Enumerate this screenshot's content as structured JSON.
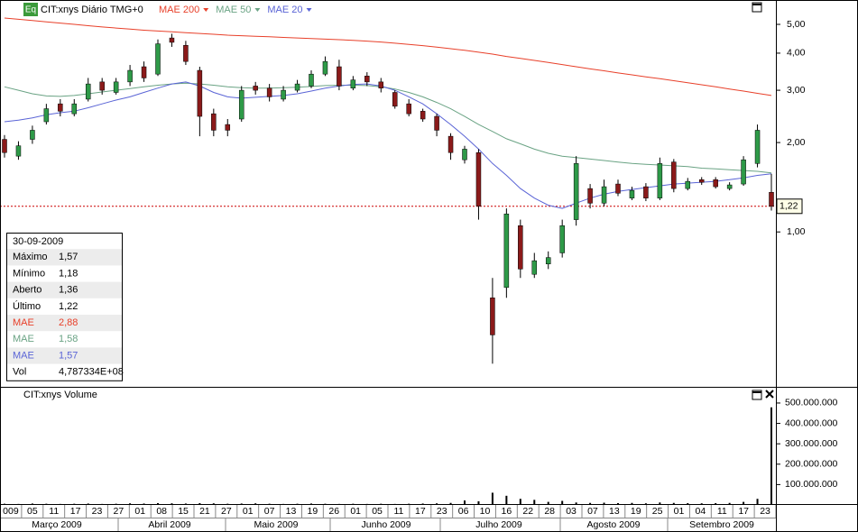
{
  "header": {
    "icon": "Eq",
    "title": "CIT:xnys Diário TMG+0"
  },
  "chart_data": [
    {
      "type": "candlestick",
      "open": [
        2.05,
        1.8,
        2.05,
        2.35,
        2.7,
        2.5,
        2.8,
        3.2,
        2.95,
        3.2,
        3.6,
        3.4,
        4.5,
        4.25,
        3.5,
        2.5,
        2.3,
        2.4,
        3.1,
        3.05,
        2.8,
        3.0,
        3.1,
        3.4,
        3.6,
        3.05,
        3.35,
        3.2,
        2.95,
        2.7,
        2.55,
        2.45,
        2.1,
        1.75,
        1.85,
        0.6,
        0.65,
        1.05,
        0.72,
        0.78,
        0.85,
        1.1,
        1.4,
        1.25,
        1.45,
        1.3,
        1.42,
        1.3,
        1.72,
        1.4,
        1.5,
        1.5,
        1.4,
        1.45,
        1.7,
        1.36
      ],
      "high": [
        2.12,
        2.02,
        2.28,
        2.7,
        2.8,
        2.8,
        3.3,
        3.3,
        3.3,
        3.65,
        3.75,
        4.45,
        4.65,
        4.4,
        3.6,
        2.6,
        2.4,
        3.1,
        3.2,
        3.15,
        3.1,
        3.25,
        3.5,
        3.9,
        3.8,
        3.35,
        3.45,
        3.3,
        3.0,
        2.8,
        2.6,
        2.5,
        2.15,
        1.95,
        1.9,
        0.7,
        1.2,
        1.1,
        0.85,
        0.86,
        1.1,
        1.8,
        1.45,
        1.5,
        1.5,
        1.42,
        1.46,
        1.78,
        1.76,
        1.52,
        1.53,
        1.53,
        1.47,
        1.8,
        2.3,
        1.57
      ],
      "low": [
        1.78,
        1.75,
        1.98,
        2.3,
        2.45,
        2.45,
        2.75,
        2.9,
        2.9,
        3.1,
        3.2,
        3.35,
        4.2,
        3.65,
        2.1,
        2.1,
        2.1,
        2.35,
        2.9,
        2.75,
        2.75,
        2.95,
        3.05,
        3.35,
        3.0,
        3.0,
        3.1,
        2.95,
        2.6,
        2.45,
        2.35,
        2.1,
        1.75,
        1.7,
        1.1,
        0.36,
        0.6,
        0.7,
        0.7,
        0.75,
        0.82,
        1.05,
        1.2,
        1.22,
        1.32,
        1.28,
        1.27,
        1.28,
        1.36,
        1.38,
        1.44,
        1.4,
        1.38,
        1.43,
        1.65,
        1.18
      ],
      "close": [
        1.85,
        1.95,
        2.2,
        2.6,
        2.55,
        2.7,
        3.15,
        3.0,
        3.2,
        3.5,
        3.3,
        4.3,
        4.35,
        3.75,
        2.45,
        2.2,
        2.2,
        3.0,
        3.0,
        2.85,
        3.0,
        3.15,
        3.4,
        3.75,
        3.1,
        3.25,
        3.2,
        3.05,
        2.65,
        2.5,
        2.4,
        2.2,
        1.85,
        1.9,
        1.22,
        0.45,
        1.15,
        0.75,
        0.8,
        0.82,
        1.05,
        1.7,
        1.25,
        1.42,
        1.35,
        1.38,
        1.3,
        1.7,
        1.4,
        1.48,
        1.47,
        1.42,
        1.44,
        1.75,
        2.2,
        1.22
      ],
      "up_color": "#2e9a48",
      "down_color": "#8b1a1a",
      "log_scale": true,
      "ylim": [
        0.303,
        6.04
      ],
      "yticks": [
        {
          "value": 5,
          "label": "5,00"
        },
        {
          "value": 4,
          "label": "4,00"
        },
        {
          "value": 3,
          "label": "3,00"
        },
        {
          "value": 2,
          "label": "2,00"
        },
        {
          "value": 1,
          "label": "1,00"
        }
      ],
      "last_price": {
        "value": 1.22,
        "label": "1,22",
        "color": "#cc0000"
      },
      "series": [
        {
          "name": "MAE 200",
          "color": "#e8402a",
          "values": [
            5.25,
            5.2,
            5.15,
            5.1,
            5.05,
            5.0,
            4.95,
            4.9,
            4.86,
            4.82,
            4.78,
            4.75,
            4.72,
            4.69,
            4.66,
            4.63,
            4.6,
            4.58,
            4.56,
            4.54,
            4.52,
            4.5,
            4.48,
            4.46,
            4.44,
            4.42,
            4.39,
            4.36,
            4.32,
            4.28,
            4.24,
            4.19,
            4.14,
            4.09,
            4.03,
            3.97,
            3.9,
            3.84,
            3.78,
            3.72,
            3.66,
            3.6,
            3.54,
            3.49,
            3.43,
            3.38,
            3.33,
            3.28,
            3.23,
            3.18,
            3.13,
            3.08,
            3.03,
            2.98,
            2.93,
            2.88
          ]
        },
        {
          "name": "MAE 50",
          "color": "#6aa384",
          "values": [
            3.08,
            3.0,
            2.92,
            2.87,
            2.86,
            2.88,
            2.92,
            2.96,
            3.0,
            3.04,
            3.08,
            3.12,
            3.15,
            3.17,
            3.15,
            3.12,
            3.08,
            3.06,
            3.05,
            3.05,
            3.06,
            3.07,
            3.09,
            3.11,
            3.12,
            3.12,
            3.11,
            3.08,
            3.03,
            2.95,
            2.85,
            2.73,
            2.6,
            2.45,
            2.3,
            2.18,
            2.06,
            1.98,
            1.9,
            1.84,
            1.8,
            1.78,
            1.76,
            1.74,
            1.72,
            1.7,
            1.69,
            1.68,
            1.67,
            1.66,
            1.64,
            1.63,
            1.62,
            1.61,
            1.6,
            1.58
          ]
        },
        {
          "name": "MAE 20",
          "color": "#5a64d6",
          "values": [
            2.35,
            2.38,
            2.42,
            2.48,
            2.52,
            2.55,
            2.62,
            2.7,
            2.78,
            2.85,
            2.95,
            3.05,
            3.15,
            3.2,
            3.1,
            2.95,
            2.85,
            2.82,
            2.84,
            2.86,
            2.88,
            2.92,
            2.98,
            3.05,
            3.1,
            3.14,
            3.15,
            3.1,
            3.0,
            2.85,
            2.7,
            2.5,
            2.3,
            2.1,
            1.9,
            1.7,
            1.55,
            1.4,
            1.3,
            1.23,
            1.2,
            1.25,
            1.3,
            1.34,
            1.37,
            1.39,
            1.41,
            1.43,
            1.45,
            1.46,
            1.47,
            1.48,
            1.5,
            1.52,
            1.55,
            1.57
          ]
        }
      ]
    },
    {
      "type": "bar",
      "title": "CIT:xnys Volume",
      "color": "#000000",
      "values": [
        6000000,
        5000000,
        7000000,
        6000000,
        5000000,
        6000000,
        7000000,
        5000000,
        6000000,
        8000000,
        7000000,
        9000000,
        8000000,
        7000000,
        9000000,
        8000000,
        6000000,
        7000000,
        8000000,
        6000000,
        5000000,
        6000000,
        7000000,
        6000000,
        5000000,
        6000000,
        5000000,
        6000000,
        5000000,
        6000000,
        7000000,
        8000000,
        10000000,
        22000000,
        18000000,
        60000000,
        45000000,
        30000000,
        25000000,
        15000000,
        20000000,
        12000000,
        10000000,
        11000000,
        9000000,
        10000000,
        8000000,
        12000000,
        10000000,
        9000000,
        8000000,
        9000000,
        10000000,
        15000000,
        30000000,
        478733400
      ],
      "ylim": [
        0,
        575000000
      ],
      "yticks": [
        {
          "value": 500000000,
          "label": "500.000.000"
        },
        {
          "value": 400000000,
          "label": "400.000.000"
        },
        {
          "value": 300000000,
          "label": "300.000.000"
        },
        {
          "value": 200000000,
          "label": "200.000.000"
        },
        {
          "value": 100000000,
          "label": "100.000.000"
        }
      ]
    }
  ],
  "x_axis": {
    "days": [
      "009",
      "05",
      "11",
      "17",
      "23",
      "27",
      "01",
      "08",
      "15",
      "21",
      "27",
      "01",
      "07",
      "13",
      "19",
      "26",
      "01",
      "05",
      "11",
      "17",
      "23",
      "06",
      "10",
      "16",
      "22",
      "28",
      "03",
      "07",
      "13",
      "19",
      "25",
      "01",
      "04",
      "11",
      "17",
      "23"
    ],
    "months": [
      "Março 2009",
      "Abril 2009",
      "Maio 2009",
      "Junho 2009",
      "Julho 2009",
      "Agosto 2009",
      "Setembro 2009"
    ]
  },
  "info_panel": {
    "date": "30-09-2009",
    "rows": [
      [
        "Máximo",
        "1,57"
      ],
      [
        "Mínimo",
        "1,18"
      ],
      [
        "Aberto",
        "1,36"
      ],
      [
        "Último",
        "1,22"
      ],
      [
        "MAE",
        "2,88"
      ],
      [
        "MAE",
        "1,58"
      ],
      [
        "MAE",
        "1,57"
      ],
      [
        "Vol",
        "4,787334E+08"
      ]
    ]
  }
}
